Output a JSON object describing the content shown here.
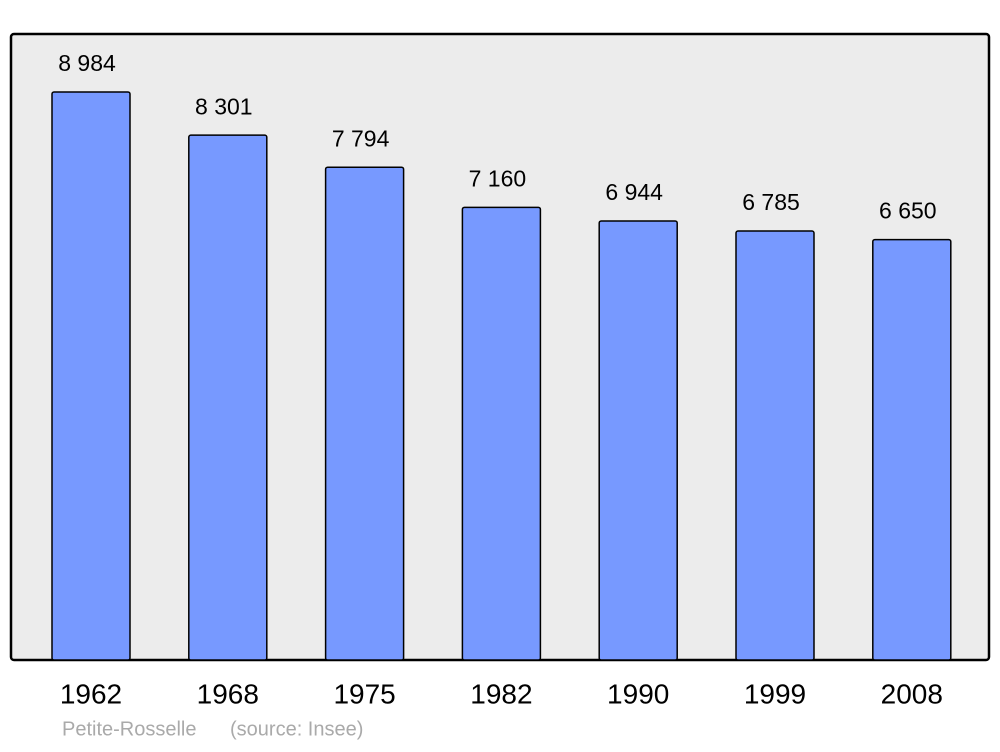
{
  "chart_data": {
    "type": "bar",
    "categories": [
      "1962",
      "1968",
      "1975",
      "1982",
      "1990",
      "1999",
      "2008"
    ],
    "values": [
      8984,
      8301,
      7794,
      7160,
      6944,
      6785,
      6650
    ],
    "value_labels": [
      "8 984",
      "8 301",
      "7 794",
      "7 160",
      "6 944",
      "6 785",
      "6 650"
    ],
    "color": "#7799ff",
    "caption": "Petite-Rosselle",
    "source": "(source: Insee)"
  }
}
